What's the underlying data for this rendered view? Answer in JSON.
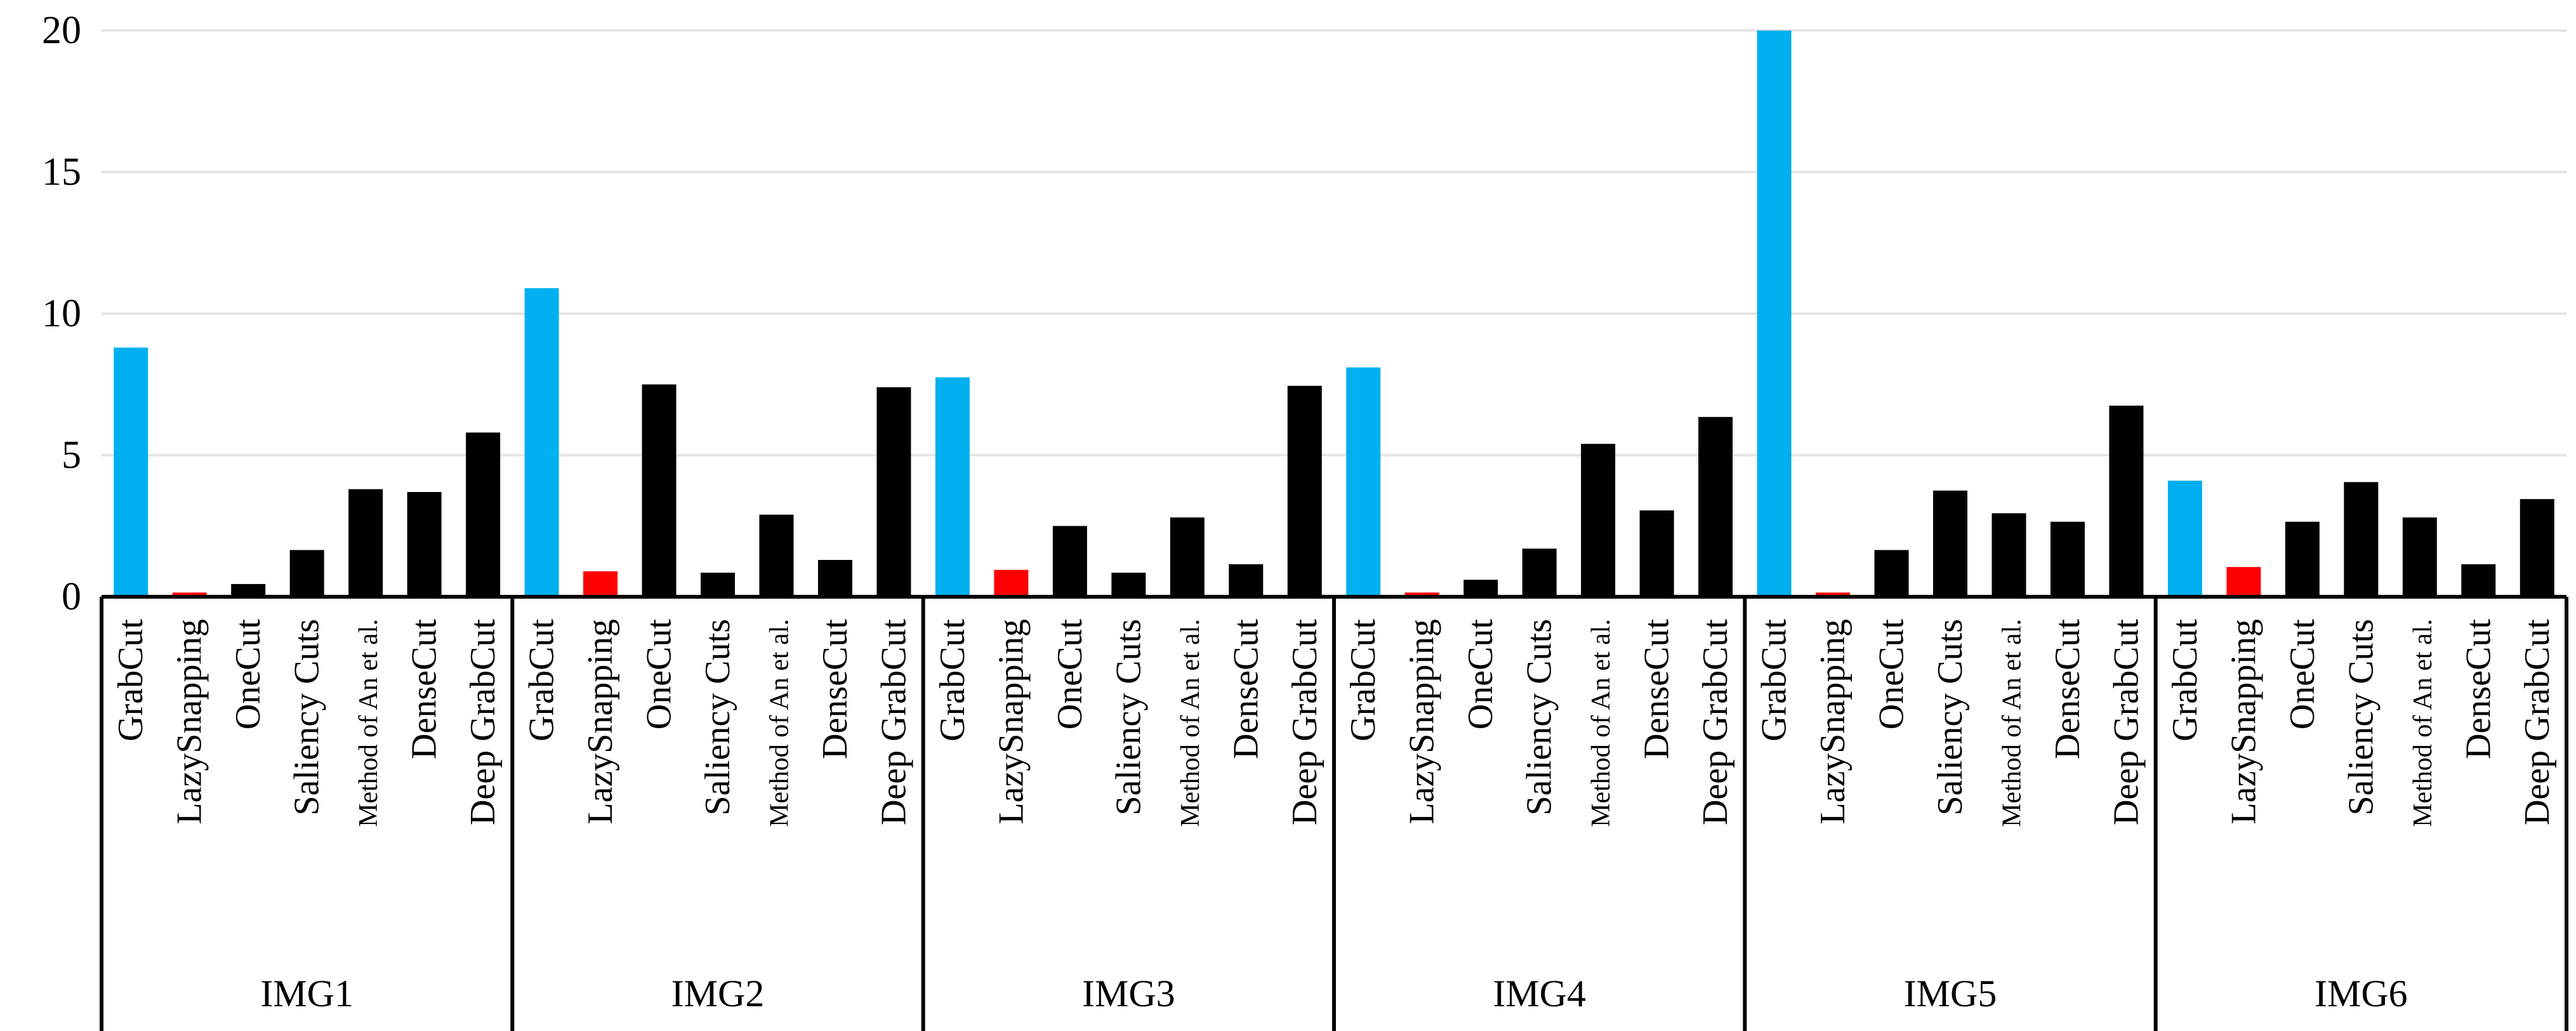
{
  "colors": {
    "grabcut": "#00b0f0",
    "lazysnapping": "#ff0000",
    "other": "#000000",
    "grid": "#e6e6e6",
    "axis": "#000000"
  },
  "chart_data": {
    "type": "bar",
    "title": "",
    "xlabel": "",
    "ylabel": "",
    "ylim": [
      0,
      20
    ],
    "yticks": [
      "0",
      "5",
      "10",
      "15",
      "20"
    ],
    "grid": true,
    "legend": "none",
    "methods": [
      "GrabCut",
      "LazySnapping",
      "OneCut",
      "Saliency Cuts",
      "Method of An et al.",
      "DenseCut",
      "Deep GrabCut"
    ],
    "groups": [
      {
        "name": "IMG1",
        "values": [
          8.8,
          0.15,
          0.45,
          1.65,
          3.8,
          3.7,
          5.8
        ]
      },
      {
        "name": "IMG2",
        "values": [
          10.9,
          0.9,
          7.5,
          0.85,
          2.9,
          1.3,
          7.4
        ]
      },
      {
        "name": "IMG3",
        "values": [
          7.75,
          0.95,
          2.5,
          0.85,
          2.8,
          1.15,
          7.45
        ]
      },
      {
        "name": "IMG4",
        "values": [
          8.1,
          0.15,
          0.6,
          1.7,
          5.4,
          3.05,
          6.35
        ]
      },
      {
        "name": "IMG5",
        "values": [
          20,
          0.15,
          1.65,
          3.75,
          2.95,
          2.65,
          6.75
        ]
      },
      {
        "name": "IMG6",
        "values": [
          4.1,
          1.05,
          2.65,
          4.05,
          2.8,
          1.15,
          3.45
        ]
      }
    ]
  }
}
